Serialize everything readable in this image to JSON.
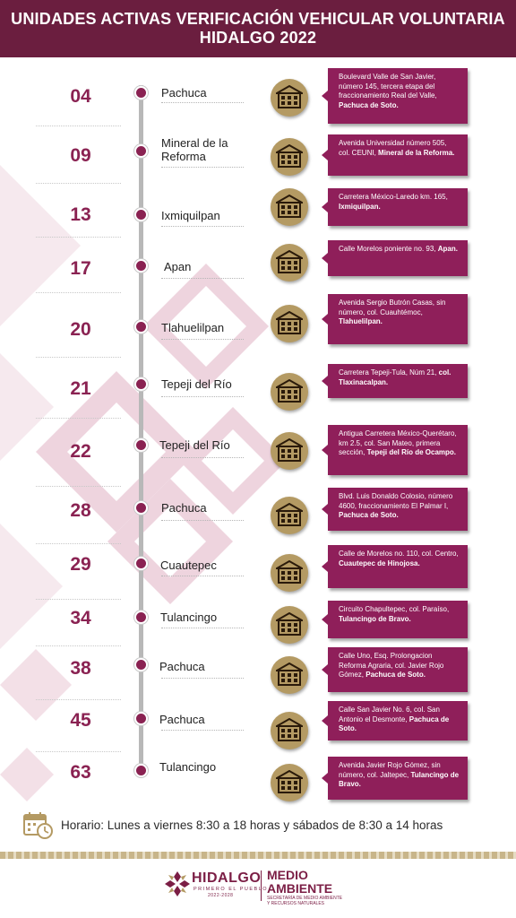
{
  "header": {
    "line1": "UNIDADES ACTIVAS VERIFICACIÓN VEHICULAR VOLUNTARIA",
    "line2": "HIDALGO 2022"
  },
  "colors": {
    "header_bg": "#6b1e3f",
    "card_bg": "#8f1f5a",
    "number": "#8a2252",
    "icon_gold": "#b49a63"
  },
  "units": [
    {
      "num": "04",
      "city": "Pachuca",
      "addr": "Boulevard Valle de San Javier, número 145, tercera etapa del fraccionamiento Real del Valle,",
      "addr_bold": "Pachuca de Soto."
    },
    {
      "num": "09",
      "city": "Mineral de la Reforma",
      "addr": "Avenida Universidad número 505, col. CEUNI,",
      "addr_bold": "Mineral de la Reforma."
    },
    {
      "num": "13",
      "city": "Ixmiquilpan",
      "addr": "Carretera México-Laredo km. 165,",
      "addr_bold": "Ixmiquilpan."
    },
    {
      "num": "17",
      "city": "Apan",
      "addr": "Calle Morelos poniente no. 93,",
      "addr_bold": "Apan."
    },
    {
      "num": "20",
      "city": "Tlahuelilpan",
      "addr": "Avenida Sergio Butrón Casas, sin número, col. Cuauhtémoc,",
      "addr_bold": "Tlahuelilpan."
    },
    {
      "num": "21",
      "city": "Tepeji del Río",
      "addr": "Carretera Tepeji-Tula, Núm 21,",
      "addr_bold": "col. Tlaxinacalpan."
    },
    {
      "num": "22",
      "city": "Tepeji del Río",
      "addr": "Antigua Carretera México-Querétaro, km 2.5, col. San Mateo, primera sección,",
      "addr_bold": "Tepeji del Río de Ocampo."
    },
    {
      "num": "28",
      "city": "Pachuca",
      "addr": "Blvd.  Luis Donaldo Colosio, número 4600, fraccionamiento El Palmar I,",
      "addr_bold": "Pachuca de Soto."
    },
    {
      "num": "29",
      "city": "Cuautepec",
      "addr": "Calle de Morelos no. 110, col. Centro,",
      "addr_bold": "Cuautepec de Hinojosa."
    },
    {
      "num": "34",
      "city": "Tulancingo",
      "addr": "Circuito Chapultepec, col. Paraíso,",
      "addr_bold": "Tulancingo de Bravo."
    },
    {
      "num": "38",
      "city": "Pachuca",
      "addr": "Calle Uno, Esq. Prolongacion Reforma Agraria, col. Javier Rojo Gómez,",
      "addr_bold": "Pachuca de Soto."
    },
    {
      "num": "45",
      "city": "Pachuca",
      "addr": "Calle San Javier No. 6, col. San Antonio el Desmonte,",
      "addr_bold": "Pachuca de Soto."
    },
    {
      "num": "63",
      "city": "Tulancingo",
      "addr": "Avenida Javier Rojo Gómez, sin número, col. Jaltepec,",
      "addr_bold": "Tulancingo de Bravo."
    }
  ],
  "schedule": {
    "icon": "calendar-clock-icon",
    "text": "Horario: Lunes a viernes  8:30 a 18 horas y sábados de 8:30 a 14 horas"
  },
  "footer": {
    "logo_left": "HIDALGO",
    "logo_left_sub": "PRIMERO EL PUEBLO",
    "logo_left_years": "2022-2028",
    "logo_right_1": "MEDIO",
    "logo_right_2": "AMBIENTE",
    "logo_right_sub1": "SECRETARÍA DE MEDIO AMBIENTE",
    "logo_right_sub2": "Y RECURSOS NATURALES"
  }
}
